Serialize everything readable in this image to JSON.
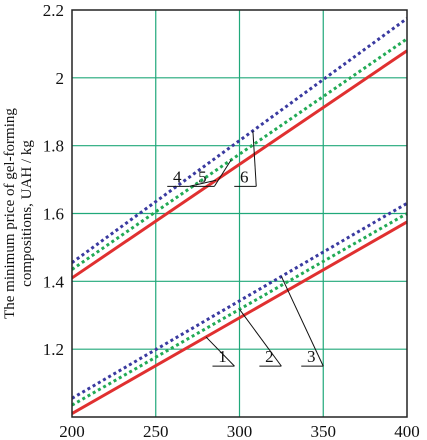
{
  "chart_data": {
    "type": "line",
    "title": "",
    "xlabel": "",
    "ylabel_lines": [
      "The minimum price of gel-forming",
      "compositions, UAH / kg"
    ],
    "xlim": [
      200,
      400
    ],
    "ylim": [
      1.0,
      2.2
    ],
    "x_ticks": [
      200,
      250,
      300,
      350,
      400
    ],
    "y_ticks": [
      1.2,
      1.4,
      1.6,
      1.8,
      2.0,
      2.2
    ],
    "x_tick_labels": [
      "200",
      "250",
      "300",
      "350",
      "400"
    ],
    "y_tick_labels": [
      "1.2",
      "1.4",
      "1.6",
      "1.8",
      "2",
      "2.2"
    ],
    "grid": true,
    "grid_color": "#20a87a",
    "series": [
      {
        "name": "1",
        "color": "#e03030",
        "style": "solid",
        "x": [
          200,
          400
        ],
        "y": [
          1.01,
          1.575
        ]
      },
      {
        "name": "2",
        "color": "#22aa55",
        "style": "dotted",
        "x": [
          200,
          400
        ],
        "y": [
          1.035,
          1.6
        ]
      },
      {
        "name": "3",
        "color": "#3a3aa0",
        "style": "dotted",
        "x": [
          200,
          400
        ],
        "y": [
          1.055,
          1.63
        ]
      },
      {
        "name": "4",
        "color": "#e03030",
        "style": "solid",
        "x": [
          200,
          400
        ],
        "y": [
          1.41,
          2.08
        ]
      },
      {
        "name": "5",
        "color": "#22aa55",
        "style": "dotted",
        "x": [
          200,
          400
        ],
        "y": [
          1.435,
          2.115
        ]
      },
      {
        "name": "6",
        "color": "#3a3aa0",
        "style": "dotted",
        "x": [
          200,
          400
        ],
        "y": [
          1.455,
          2.175
        ]
      }
    ],
    "annotations": [
      {
        "label": "1",
        "target_series": "1",
        "pointer_x": 280,
        "label_x": 297,
        "label_y": 1.15
      },
      {
        "label": "2",
        "target_series": "2",
        "pointer_x": 300,
        "label_x": 325,
        "label_y": 1.15
      },
      {
        "label": "3",
        "target_series": "3",
        "pointer_x": 325,
        "label_x": 350,
        "label_y": 1.15
      },
      {
        "label": "4",
        "target_series": "4",
        "pointer_x": 286,
        "label_x": 270,
        "label_y": 1.68
      },
      {
        "label": "5",
        "target_series": "5",
        "pointer_x": 295,
        "label_x": 285,
        "label_y": 1.68
      },
      {
        "label": "6",
        "target_series": "6",
        "pointer_x": 308,
        "label_x": 310,
        "label_y": 1.68
      }
    ]
  }
}
